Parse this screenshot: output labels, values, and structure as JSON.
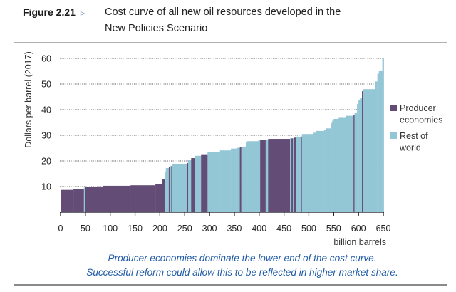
{
  "figure": {
    "number": "Figure 2.21",
    "marker_icon": "triangle-right-icon",
    "marker_glyph": "▹",
    "title_line1": "Cost curve of all new oil resources developed in the",
    "title_line2": "New Policies Scenario"
  },
  "caption": {
    "line1": "Producer economies dominate the lower end of the cost curve.",
    "line2": "Successful reform could allow this to be reflected in higher market share."
  },
  "colors": {
    "producer": "#634c75",
    "rest": "#93c7d6",
    "caption": "#1f5aa6",
    "grid": "#555555",
    "axis": "#111111"
  },
  "chart_data": {
    "type": "bar",
    "subtype": "variable-width cost curve",
    "title": "Cost curve of all new oil resources developed in the New Policies Scenario",
    "xlabel": "billion barrels",
    "ylabel": "Dollars per barrel (2017)",
    "xlim": [
      0,
      650
    ],
    "ylim": [
      0,
      60
    ],
    "xticks": [
      0,
      50,
      100,
      150,
      200,
      250,
      300,
      350,
      400,
      450,
      500,
      550,
      600,
      650
    ],
    "yticks": [
      10,
      20,
      30,
      40,
      50,
      60
    ],
    "grid": "horizontal dotted",
    "legend": {
      "position": "right",
      "entries": [
        {
          "key": "producer",
          "label_lines": [
            "Producer",
            "economies"
          ]
        },
        {
          "key": "rest",
          "label_lines": [
            "Rest of",
            "world"
          ]
        }
      ]
    },
    "series": [
      {
        "name": "Producer economies",
        "key": "producer"
      },
      {
        "name": "Rest of world",
        "key": "rest"
      }
    ],
    "segments": [
      {
        "x0": 0,
        "x1": 26,
        "y": 8.7,
        "group": "producer"
      },
      {
        "x0": 26,
        "x1": 47,
        "y": 9.0,
        "group": "producer"
      },
      {
        "x0": 47,
        "x1": 49,
        "y": 9.6,
        "group": "rest"
      },
      {
        "x0": 49,
        "x1": 86,
        "y": 10.0,
        "group": "producer"
      },
      {
        "x0": 86,
        "x1": 141,
        "y": 10.3,
        "group": "producer"
      },
      {
        "x0": 141,
        "x1": 191,
        "y": 10.5,
        "group": "producer"
      },
      {
        "x0": 191,
        "x1": 205,
        "y": 11.1,
        "group": "producer"
      },
      {
        "x0": 205,
        "x1": 210,
        "y": 12.8,
        "group": "producer"
      },
      {
        "x0": 210,
        "x1": 212,
        "y": 15.8,
        "group": "rest"
      },
      {
        "x0": 212,
        "x1": 218,
        "y": 17.2,
        "group": "rest"
      },
      {
        "x0": 218,
        "x1": 220,
        "y": 17.5,
        "group": "producer"
      },
      {
        "x0": 220,
        "x1": 223,
        "y": 18.0,
        "group": "rest"
      },
      {
        "x0": 223,
        "x1": 225,
        "y": 18.0,
        "group": "producer"
      },
      {
        "x0": 225,
        "x1": 255,
        "y": 18.9,
        "group": "rest"
      },
      {
        "x0": 255,
        "x1": 257,
        "y": 19.2,
        "group": "producer"
      },
      {
        "x0": 257,
        "x1": 263,
        "y": 20.5,
        "group": "rest"
      },
      {
        "x0": 263,
        "x1": 270,
        "y": 21.1,
        "group": "producer"
      },
      {
        "x0": 270,
        "x1": 283,
        "y": 22.0,
        "group": "rest"
      },
      {
        "x0": 283,
        "x1": 296,
        "y": 22.6,
        "group": "producer"
      },
      {
        "x0": 296,
        "x1": 321,
        "y": 23.5,
        "group": "rest"
      },
      {
        "x0": 321,
        "x1": 343,
        "y": 24.1,
        "group": "rest"
      },
      {
        "x0": 343,
        "x1": 354,
        "y": 24.8,
        "group": "rest"
      },
      {
        "x0": 354,
        "x1": 361,
        "y": 25.1,
        "group": "rest"
      },
      {
        "x0": 361,
        "x1": 364,
        "y": 25.3,
        "group": "producer"
      },
      {
        "x0": 364,
        "x1": 373,
        "y": 25.6,
        "group": "rest"
      },
      {
        "x0": 373,
        "x1": 376,
        "y": 27.4,
        "group": "rest"
      },
      {
        "x0": 376,
        "x1": 398,
        "y": 27.7,
        "group": "rest"
      },
      {
        "x0": 398,
        "x1": 402,
        "y": 28.0,
        "group": "rest"
      },
      {
        "x0": 402,
        "x1": 413,
        "y": 28.2,
        "group": "producer"
      },
      {
        "x0": 413,
        "x1": 418,
        "y": 28.2,
        "group": "rest"
      },
      {
        "x0": 418,
        "x1": 462,
        "y": 28.6,
        "group": "producer"
      },
      {
        "x0": 462,
        "x1": 465,
        "y": 28.8,
        "group": "rest"
      },
      {
        "x0": 465,
        "x1": 468,
        "y": 28.8,
        "group": "producer"
      },
      {
        "x0": 468,
        "x1": 470,
        "y": 28.9,
        "group": "rest"
      },
      {
        "x0": 470,
        "x1": 474,
        "y": 29.1,
        "group": "producer"
      },
      {
        "x0": 474,
        "x1": 484,
        "y": 29.5,
        "group": "rest"
      },
      {
        "x0": 484,
        "x1": 486,
        "y": 29.5,
        "group": "producer"
      },
      {
        "x0": 486,
        "x1": 509,
        "y": 30.5,
        "group": "rest"
      },
      {
        "x0": 509,
        "x1": 514,
        "y": 31.0,
        "group": "rest"
      },
      {
        "x0": 514,
        "x1": 531,
        "y": 31.7,
        "group": "rest"
      },
      {
        "x0": 531,
        "x1": 534,
        "y": 32.0,
        "group": "rest"
      },
      {
        "x0": 534,
        "x1": 544,
        "y": 32.7,
        "group": "rest"
      },
      {
        "x0": 544,
        "x1": 547,
        "y": 34.8,
        "group": "rest"
      },
      {
        "x0": 547,
        "x1": 550,
        "y": 35.7,
        "group": "rest"
      },
      {
        "x0": 550,
        "x1": 560,
        "y": 36.4,
        "group": "rest"
      },
      {
        "x0": 560,
        "x1": 574,
        "y": 37.1,
        "group": "rest"
      },
      {
        "x0": 574,
        "x1": 590,
        "y": 37.6,
        "group": "rest"
      },
      {
        "x0": 590,
        "x1": 592,
        "y": 38.0,
        "group": "producer"
      },
      {
        "x0": 592,
        "x1": 597,
        "y": 38.9,
        "group": "rest"
      },
      {
        "x0": 597,
        "x1": 600,
        "y": 42.2,
        "group": "rest"
      },
      {
        "x0": 600,
        "x1": 603,
        "y": 43.9,
        "group": "rest"
      },
      {
        "x0": 603,
        "x1": 607,
        "y": 44.7,
        "group": "rest"
      },
      {
        "x0": 607,
        "x1": 609,
        "y": 47.2,
        "group": "producer"
      },
      {
        "x0": 609,
        "x1": 634,
        "y": 48.0,
        "group": "rest"
      },
      {
        "x0": 634,
        "x1": 638,
        "y": 51.0,
        "group": "rest"
      },
      {
        "x0": 638,
        "x1": 641,
        "y": 54.0,
        "group": "rest"
      },
      {
        "x0": 641,
        "x1": 648,
        "y": 55.3,
        "group": "rest"
      },
      {
        "x0": 648,
        "x1": 651,
        "y": 60.0,
        "group": "rest"
      }
    ]
  }
}
